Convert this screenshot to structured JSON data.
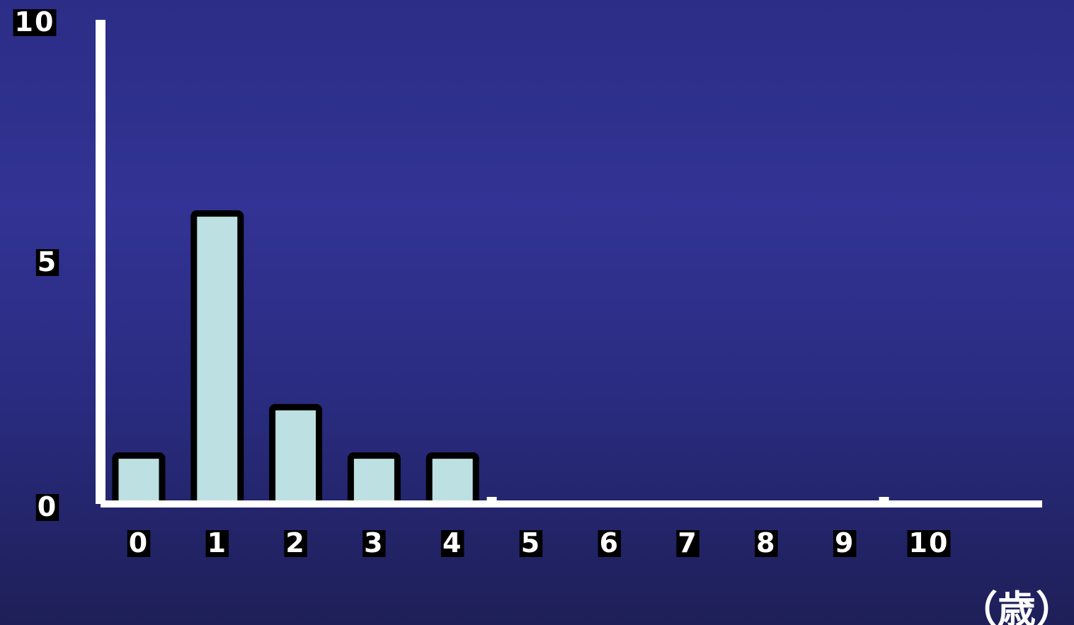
{
  "chart_data": {
    "type": "bar",
    "categories": [
      "0",
      "1",
      "2",
      "3",
      "4",
      "5",
      "6",
      "7",
      "8",
      "9",
      "10"
    ],
    "values": [
      1,
      6,
      2,
      1,
      1,
      0,
      0,
      0,
      0,
      0,
      0
    ],
    "ylim": [
      0,
      10
    ],
    "yticks": [
      "0",
      "5",
      "10"
    ],
    "xunit": "（歳）",
    "grid": false,
    "legend": "none"
  },
  "colors": {
    "bar_fill": "#bde0e2",
    "bar_stroke": "#000000",
    "axis": "#ffffff",
    "label_bg": "#000000",
    "label_text": "#ffffff"
  }
}
